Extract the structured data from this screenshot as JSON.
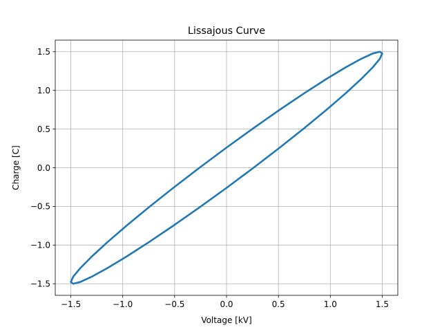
{
  "chart_data": {
    "type": "line",
    "title": "Lissajous Curve",
    "xlabel": "Voltage [kV]",
    "ylabel": "Charge [C]",
    "xlim": [
      -1.65,
      1.65
    ],
    "ylim": [
      -1.65,
      1.65
    ],
    "xticks": [
      -1.5,
      -1.0,
      -0.5,
      0.0,
      0.5,
      1.0,
      1.5
    ],
    "yticks": [
      -1.5,
      -1.0,
      -0.5,
      0.0,
      0.5,
      1.0,
      1.5
    ],
    "xtick_labels": [
      "−1.5",
      "−1.0",
      "−0.5",
      "0.0",
      "0.5",
      "1.0",
      "1.5"
    ],
    "ytick_labels": [
      "−1.5",
      "−1.0",
      "−0.5",
      "0.0",
      "0.5",
      "1.0",
      "1.5"
    ],
    "grid": true,
    "series": [
      {
        "color": "#1f77b4",
        "x": [
          1.5,
          1.4772,
          1.4095,
          1.299,
          1.1491,
          0.9642,
          0.75,
          0.513,
          0.2605,
          0.0,
          -0.2605,
          -0.513,
          -0.75,
          -0.9642,
          -1.1491,
          -1.299,
          -1.4095,
          -1.4772,
          -1.5,
          -1.4772,
          -1.4095,
          -1.299,
          -1.1491,
          -0.9642,
          -0.75,
          -0.513,
          -0.2605,
          0.0,
          0.2605,
          0.513,
          0.75,
          0.9642,
          1.1491,
          1.299,
          1.4095,
          1.4772,
          1.5
        ],
        "y": [
          1.4772,
          1.5,
          1.4772,
          1.4095,
          1.299,
          1.1491,
          0.9642,
          0.75,
          0.513,
          0.2605,
          0.0,
          -0.2605,
          -0.513,
          -0.75,
          -0.9642,
          -1.1491,
          -1.299,
          -1.4095,
          -1.4772,
          -1.5,
          -1.4772,
          -1.4095,
          -1.299,
          -1.1491,
          -0.9642,
          -0.75,
          -0.513,
          -0.2605,
          0.0,
          0.2605,
          0.513,
          0.75,
          0.9642,
          1.1491,
          1.299,
          1.4095,
          1.4772
        ]
      }
    ]
  }
}
